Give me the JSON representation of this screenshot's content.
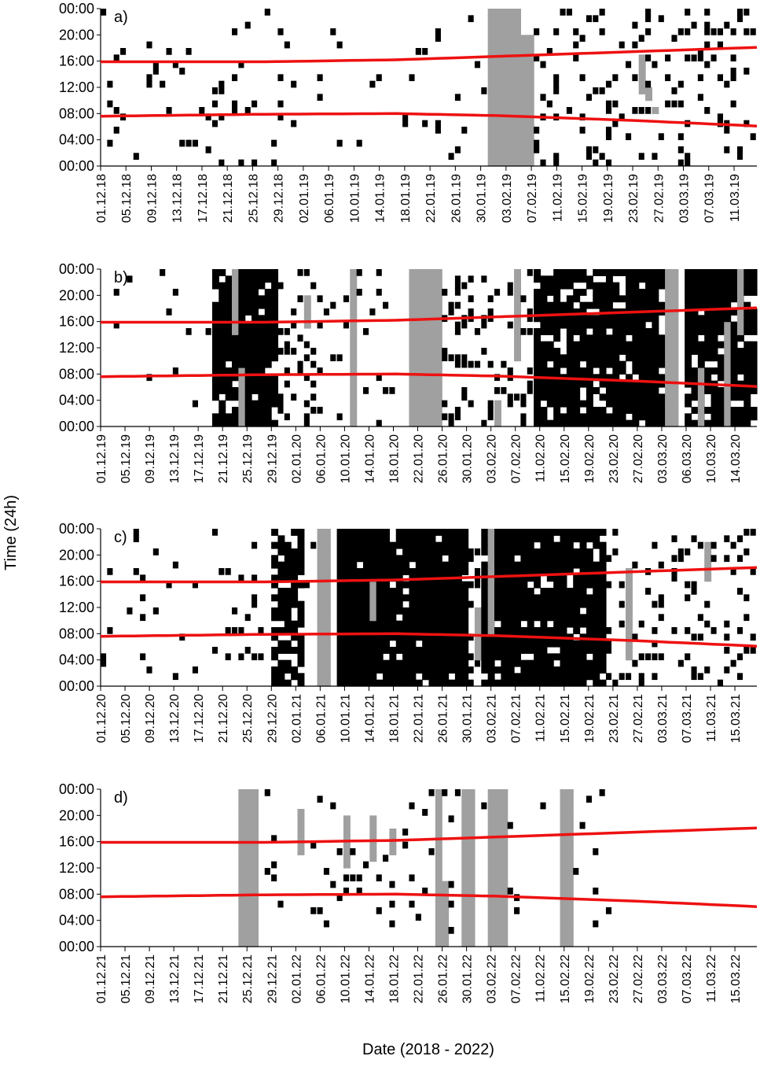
{
  "chart_data": {
    "type": "heatmap",
    "ylabel": "Time (24h)",
    "xlabel": "Date (2018 - 2022)",
    "ytick_labels": [
      "00:00",
      "04:00",
      "08:00",
      "12:00",
      "16:00",
      "20:00",
      "00:00"
    ],
    "colors": {
      "activity": "#000000",
      "partial": "#a0a0a0",
      "daylight_line": "#ee1111",
      "background": "#ffffff"
    },
    "panels": [
      {
        "label": "a)",
        "xtick_labels": [
          "01.12.18",
          "05.12.18",
          "09.12.18",
          "13.12.18",
          "17.12.18",
          "21.12.18",
          "25.12.18",
          "29.12.18",
          "02.01.19",
          "06.01.19",
          "10.01.19",
          "14.01.19",
          "18.01.19",
          "22.01.19",
          "26.01.19",
          "30.01.19",
          "03.02.19",
          "07.02.19",
          "11.02.19",
          "15.02.19",
          "19.02.19",
          "23.02.19",
          "27.02.19",
          "03.03.19",
          "07.03.19",
          "11.03.19"
        ],
        "seed": 11,
        "dense_spans": [],
        "gray_spans": [
          [
            59,
            64,
            0,
            24
          ],
          [
            63,
            66,
            0,
            20
          ],
          [
            82,
            83,
            11,
            17
          ],
          [
            83,
            84,
            10,
            12
          ],
          [
            84,
            85,
            8,
            9
          ]
        ],
        "density": [
          [
            0,
            18,
            0.06
          ],
          [
            18,
            31,
            0.1
          ],
          [
            31,
            58,
            0.04
          ],
          [
            58,
            66,
            0.05
          ],
          [
            66,
            100,
            0.16
          ]
        ]
      },
      {
        "label": "b)",
        "xtick_labels": [
          "01.12.19",
          "05.12.19",
          "09.12.19",
          "13.12.19",
          "17.12.19",
          "21.12.19",
          "25.12.19",
          "29.12.19",
          "02.01.20",
          "06.01.20",
          "10.01.20",
          "14.01.20",
          "18.01.20",
          "22.01.20",
          "26.01.20",
          "30.01.20",
          "03.02.20",
          "07.02.20",
          "11.02.20",
          "15.02.20",
          "19.02.20",
          "23.02.20",
          "27.02.20",
          "03.03.20",
          "06.03.20",
          "10.03.20",
          "14.03.20"
        ],
        "seed": 23,
        "dense_spans": [
          [
            17,
            27,
            0.9
          ],
          [
            66,
            87,
            0.85
          ],
          [
            89,
            100,
            0.85
          ]
        ],
        "gray_spans": [
          [
            20,
            21,
            14,
            24
          ],
          [
            21,
            22,
            0,
            9
          ],
          [
            31,
            32,
            15,
            20
          ],
          [
            38,
            39,
            0,
            24
          ],
          [
            47,
            52,
            0,
            24
          ],
          [
            60,
            61,
            0,
            4
          ],
          [
            63,
            64,
            10,
            24
          ],
          [
            86,
            88,
            0,
            24
          ],
          [
            87,
            88,
            5,
            10
          ],
          [
            91,
            92,
            0,
            9
          ],
          [
            95,
            96,
            0,
            16
          ],
          [
            97,
            98,
            14,
            24
          ]
        ],
        "density": [
          [
            0,
            17,
            0.03
          ],
          [
            27,
            34,
            0.22
          ],
          [
            34,
            47,
            0.05
          ],
          [
            52,
            66,
            0.24
          ]
        ]
      },
      {
        "label": "c)",
        "xtick_labels": [
          "01.12.20",
          "05.12.20",
          "09.12.20",
          "13.12.20",
          "17.12.20",
          "21.12.20",
          "25.12.20",
          "29.12.20",
          "02.01.21",
          "06.01.21",
          "10.01.21",
          "14.01.21",
          "18.01.21",
          "22.01.21",
          "26.01.21",
          "30.01.21",
          "03.02.21",
          "07.02.21",
          "11.02.21",
          "15.02.21",
          "19.02.21",
          "23.02.21",
          "27.02.21",
          "03.03.21",
          "07.03.21",
          "11.03.21",
          "15.03.21"
        ],
        "seed": 37,
        "dense_spans": [
          [
            26,
            31,
            0.7
          ],
          [
            36,
            56,
            0.93
          ],
          [
            58,
            77,
            0.9
          ]
        ],
        "gray_spans": [
          [
            33,
            35,
            0,
            24
          ],
          [
            41,
            42,
            10,
            16
          ],
          [
            57,
            58,
            4,
            12
          ],
          [
            59,
            60,
            8,
            24
          ],
          [
            80,
            81,
            4,
            18
          ],
          [
            92,
            93,
            16,
            22
          ]
        ],
        "density": [
          [
            0,
            26,
            0.06
          ],
          [
            31,
            33,
            0.08
          ],
          [
            56,
            58,
            0.35
          ],
          [
            77,
            100,
            0.17
          ]
        ]
      },
      {
        "label": "d)",
        "xtick_labels": [
          "01.12.21",
          "05.12.21",
          "09.12.21",
          "13.12.21",
          "17.12.21",
          "21.12.21",
          "25.12.21",
          "29.12.21",
          "02.01.22",
          "06.01.22",
          "10.01.22",
          "14.01.22",
          "18.01.22",
          "22.01.22",
          "26.01.22",
          "30.01.22",
          "03.02.22",
          "07.02.22",
          "11.02.22",
          "15.02.22",
          "19.02.22",
          "23.02.22",
          "27.02.22",
          "03.03.22",
          "07.03.22",
          "11.03.22",
          "15.03.22"
        ],
        "seed": 53,
        "dense_spans": [],
        "gray_spans": [
          [
            21,
            24,
            0,
            24
          ],
          [
            30,
            31,
            14,
            21
          ],
          [
            37,
            38,
            12,
            20
          ],
          [
            41,
            42,
            13,
            20
          ],
          [
            44,
            45,
            14,
            18
          ],
          [
            51,
            52,
            0,
            24
          ],
          [
            52,
            53,
            0,
            10
          ],
          [
            55,
            57,
            0,
            24
          ],
          [
            59,
            62,
            0,
            24
          ],
          [
            70,
            72,
            0,
            24
          ]
        ],
        "density": [
          [
            25,
            53,
            0.07
          ],
          [
            53,
            78,
            0.05
          ]
        ]
      }
    ],
    "daylight_curves": {
      "sunrise": [
        [
          0,
          7.6
        ],
        [
          25,
          7.9
        ],
        [
          45,
          8.0
        ],
        [
          60,
          7.7
        ],
        [
          80,
          7.0
        ],
        [
          100,
          6.1
        ]
      ],
      "sunset": [
        [
          0,
          15.9
        ],
        [
          25,
          15.9
        ],
        [
          45,
          16.2
        ],
        [
          60,
          16.7
        ],
        [
          80,
          17.4
        ],
        [
          100,
          18.1
        ]
      ]
    }
  }
}
